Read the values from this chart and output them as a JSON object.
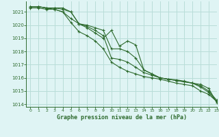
{
  "title": "Graphe pression niveau de la mer (hPa)",
  "background_color": "#dff4f4",
  "grid_color": "#b8ddd8",
  "line_color": "#2d6a2d",
  "xlim": [
    -0.5,
    23
  ],
  "ylim": [
    1013.8,
    1021.8
  ],
  "yticks": [
    1014,
    1015,
    1016,
    1017,
    1018,
    1019,
    1020,
    1021
  ],
  "xticks": [
    0,
    1,
    2,
    3,
    4,
    5,
    6,
    7,
    8,
    9,
    10,
    11,
    12,
    13,
    14,
    15,
    16,
    17,
    18,
    19,
    20,
    21,
    22,
    23
  ],
  "series": [
    [
      1021.4,
      1021.4,
      1021.3,
      1021.3,
      1021.2,
      1021.0,
      1020.1,
      1020.0,
      1019.8,
      1019.6,
      1018.2,
      1018.2,
      1018.0,
      1017.5,
      1016.6,
      1016.3,
      1016.0,
      1015.9,
      1015.8,
      1015.7,
      1015.6,
      1015.3,
      1014.9,
      1014.2
    ],
    [
      1021.4,
      1021.4,
      1021.3,
      1021.3,
      1021.3,
      1021.0,
      1020.1,
      1019.8,
      1019.4,
      1019.0,
      1019.6,
      1018.4,
      1018.8,
      1018.5,
      1016.6,
      1016.3,
      1016.0,
      1015.9,
      1015.85,
      1015.75,
      1015.6,
      1015.5,
      1015.2,
      1014.1
    ],
    [
      1021.4,
      1021.4,
      1021.3,
      1021.2,
      1021.0,
      1020.5,
      1020.1,
      1019.9,
      1019.6,
      1019.2,
      1017.5,
      1017.4,
      1017.2,
      1016.8,
      1016.4,
      1016.2,
      1016.0,
      1015.9,
      1015.8,
      1015.7,
      1015.6,
      1015.4,
      1015.0,
      1014.3
    ],
    [
      1021.3,
      1021.3,
      1021.2,
      1021.2,
      1021.0,
      1020.2,
      1019.5,
      1019.2,
      1018.8,
      1018.2,
      1017.2,
      1016.8,
      1016.5,
      1016.3,
      1016.1,
      1016.0,
      1015.9,
      1015.75,
      1015.6,
      1015.5,
      1015.4,
      1015.0,
      1014.75,
      1014.2
    ]
  ]
}
